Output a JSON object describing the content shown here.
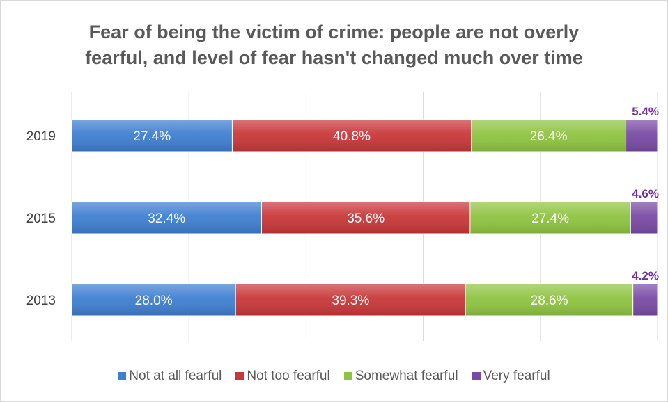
{
  "title_lines": [
    "Fear of being the victim of crime: people are not overly",
    "fearful, and level of fear hasn't changed much over time"
  ],
  "chart_data": {
    "type": "bar",
    "orientation": "horizontal",
    "stacked": "percent",
    "categories": [
      "2019",
      "2015",
      "2013"
    ],
    "series": [
      {
        "name": "Not at all fearful",
        "color": "#3f7fd0",
        "values": [
          27.4,
          32.4,
          28.0
        ],
        "labels": [
          "27.4%",
          "32.4%",
          "28.0%"
        ]
      },
      {
        "name": "Not too fearful",
        "color": "#c8383a",
        "values": [
          40.8,
          35.6,
          39.3
        ],
        "labels": [
          "40.8%",
          "35.6%",
          "39.3%"
        ]
      },
      {
        "name": "Somewhat fearful",
        "color": "#8fc442",
        "values": [
          26.4,
          27.4,
          28.6
        ],
        "labels": [
          "26.4%",
          "27.4%",
          "28.6%"
        ]
      },
      {
        "name": "Very fearful",
        "color": "#7a4ba5",
        "values": [
          5.4,
          4.6,
          4.2
        ],
        "labels": [
          "5.4%",
          "4.6%",
          "4.2%"
        ]
      }
    ],
    "xlim": [
      0,
      100
    ],
    "grid": true,
    "legend_position": "bottom"
  }
}
